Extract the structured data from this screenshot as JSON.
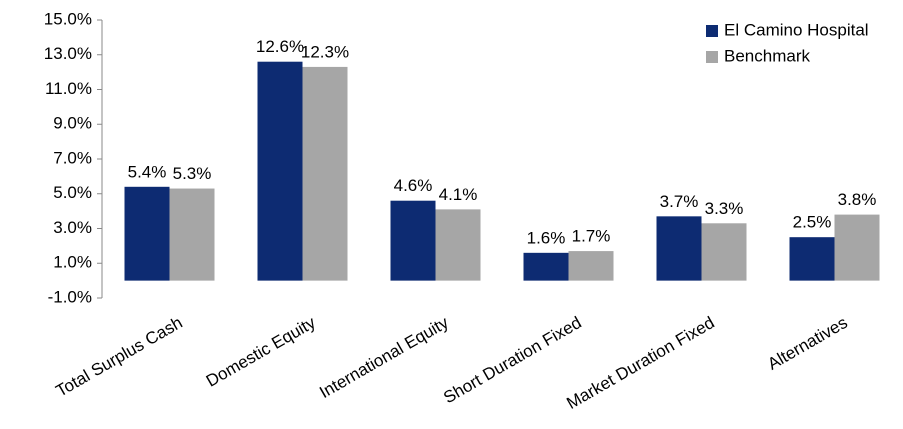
{
  "chart_data": {
    "type": "bar",
    "categories": [
      "Total Surplus Cash",
      "Domestic Equity",
      "International Equity",
      "Short Duration Fixed",
      "Market Duration Fixed",
      "Alternatives"
    ],
    "series": [
      {
        "name": "El Camino Hospital",
        "color": "#0d2b72",
        "values": [
          5.4,
          12.6,
          4.6,
          1.6,
          3.7,
          2.5
        ],
        "value_labels": [
          "5.4%",
          "12.6%",
          "4.6%",
          "1.6%",
          "3.7%",
          "2.5%"
        ]
      },
      {
        "name": "Benchmark",
        "color": "#a6a6a6",
        "values": [
          5.3,
          12.3,
          4.1,
          1.7,
          3.3,
          3.8
        ],
        "value_labels": [
          "5.3%",
          "12.3%",
          "4.1%",
          "1.7%",
          "3.3%",
          "3.8%"
        ]
      }
    ],
    "ylim": [
      -1.0,
      15.0
    ],
    "yticks": [
      {
        "value": -1.0,
        "label": "-1.0%"
      },
      {
        "value": 1.0,
        "label": "1.0%"
      },
      {
        "value": 3.0,
        "label": "3.0%"
      },
      {
        "value": 5.0,
        "label": "5.0%"
      },
      {
        "value": 7.0,
        "label": "7.0%"
      },
      {
        "value": 9.0,
        "label": "9.0%"
      },
      {
        "value": 11.0,
        "label": "11.0%"
      },
      {
        "value": 13.0,
        "label": "13.0%"
      },
      {
        "value": 15.0,
        "label": "15.0%"
      }
    ],
    "grid": false,
    "legend": "upper right"
  }
}
